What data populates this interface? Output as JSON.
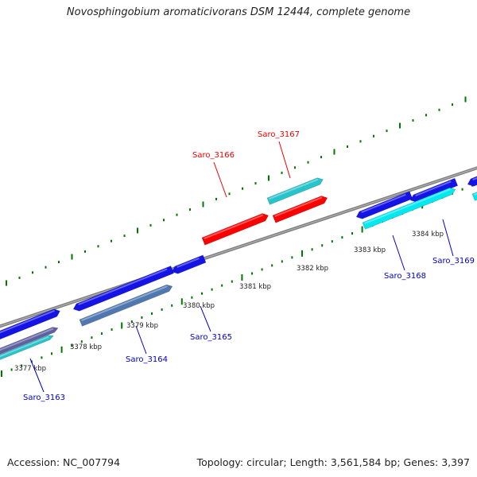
{
  "title": "Novosphingobium aromaticivorans DSM 12444, complete genome",
  "footer": {
    "accession": "Accession: NC_007794",
    "stats": "Topology: circular; Length: 3,561,584 bp; Genes: 3,397"
  },
  "colors": {
    "label_red": "#ee0000",
    "label_blue": "#0000cc",
    "tick_green": "#007700",
    "backbone": "#808080",
    "gene_blue": "#1414e6",
    "gene_red": "#ff0000",
    "gene_cyan": "#00e8f0",
    "gene_teal": "#27c4cc",
    "gene_steel": "#5078b0"
  },
  "scale": {
    "kbp_labels": [
      "3377 kbp",
      "3378 kbp",
      "3379 kbp",
      "3380 kbp",
      "3381 kbp",
      "3382 kbp",
      "3383 kbp",
      "3384 kbp"
    ]
  },
  "gene_labels": [
    {
      "name": "Saro_3163",
      "color": "blue"
    },
    {
      "name": "Saro_3164",
      "color": "blue"
    },
    {
      "name": "Saro_3165",
      "color": "blue"
    },
    {
      "name": "Saro_3166",
      "color": "red"
    },
    {
      "name": "Saro_3167",
      "color": "red"
    },
    {
      "name": "Saro_3168",
      "color": "blue"
    },
    {
      "name": "Saro_3169",
      "color": "blue"
    }
  ]
}
